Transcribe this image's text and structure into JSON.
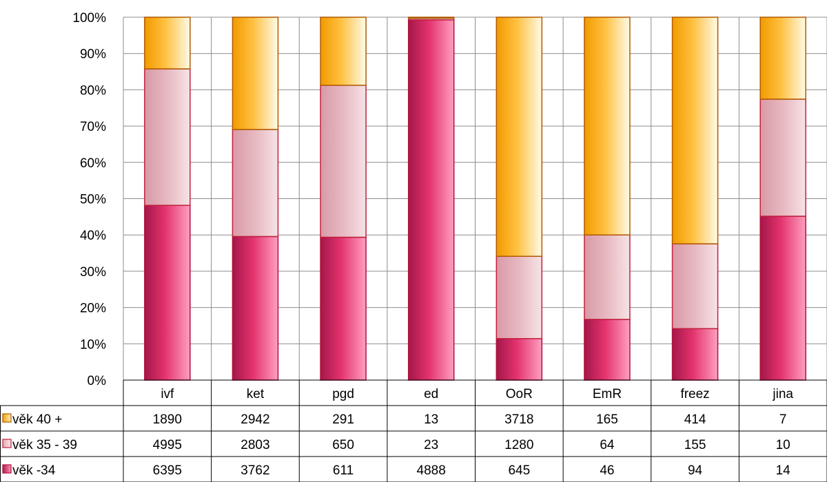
{
  "chart_data": {
    "type": "bar",
    "stacked": "percent",
    "categories": [
      "ivf",
      "ket",
      "pgd",
      "ed",
      "OoR",
      "EmR",
      "freez",
      "jina"
    ],
    "series": [
      {
        "name": "věk -34",
        "values": [
          6395,
          3762,
          611,
          4888,
          645,
          46,
          94,
          14
        ],
        "color": "#e0306a"
      },
      {
        "name": "věk 35 - 39",
        "values": [
          4995,
          2803,
          650,
          23,
          1280,
          64,
          155,
          10
        ],
        "color": "#e8aab4"
      },
      {
        "name": "věk 40 +",
        "values": [
          1890,
          2942,
          291,
          13,
          3718,
          165,
          414,
          7
        ],
        "color": "#ffb21a"
      }
    ],
    "y_ticks": [
      "0%",
      "10%",
      "20%",
      "30%",
      "40%",
      "50%",
      "60%",
      "70%",
      "80%",
      "90%",
      "100%"
    ],
    "ylim": [
      0,
      100
    ],
    "grid": true,
    "data_table": true
  }
}
